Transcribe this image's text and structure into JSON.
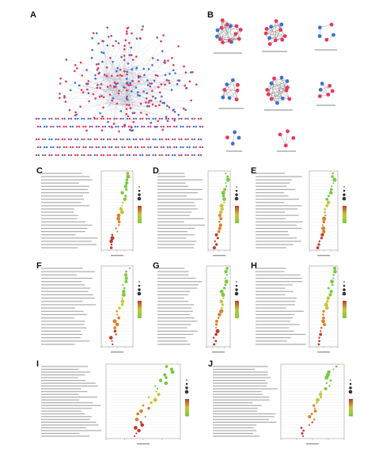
{
  "figure": {
    "panel_labels": [
      "A",
      "B",
      "C",
      "D",
      "E",
      "F",
      "G",
      "H",
      "I",
      "J"
    ]
  },
  "colors": {
    "node_red": "#e8365d",
    "node_blue": "#3d6fd6",
    "edge": "#9aa3b5",
    "dot_green": "#7ac943",
    "dot_yellow": "#c8c63a",
    "dot_orange": "#d9822b",
    "dot_red": "#c0392b"
  }
}
